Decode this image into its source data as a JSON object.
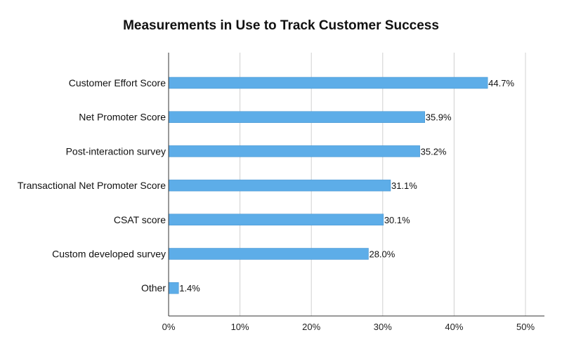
{
  "chart_data": {
    "type": "bar",
    "orientation": "horizontal",
    "title": "Measurements in Use to Track Customer Success",
    "xlabel": "",
    "ylabel": "",
    "categories": [
      "Customer Effort Score",
      "Net Promoter Score",
      "Post-interaction survey",
      "Transactional Net Promoter Score",
      "CSAT score",
      "Custom developed survey",
      "Other"
    ],
    "values": [
      44.7,
      35.9,
      35.2,
      31.1,
      30.1,
      28.0,
      1.4
    ],
    "value_labels": [
      "44.7%",
      "35.9%",
      "35.2%",
      "31.1%",
      "30.1%",
      "28.0%",
      "1.4%"
    ],
    "x_ticks": [
      "0%",
      "10%",
      "20%",
      "30%",
      "40%",
      "50%"
    ],
    "xlim": [
      0,
      50
    ],
    "grid": true,
    "legend": "none",
    "bar_color": "#5DADE8"
  }
}
